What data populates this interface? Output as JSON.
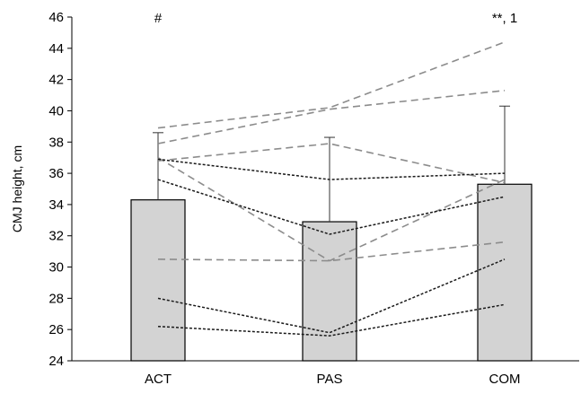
{
  "chart_data": {
    "type": "bar",
    "title": "",
    "xlabel": "",
    "ylabel": "CMJ height, cm",
    "ylim": [
      24,
      46
    ],
    "yticks": [
      24,
      26,
      28,
      30,
      32,
      34,
      36,
      38,
      40,
      42,
      44,
      46
    ],
    "grid": false,
    "categories": [
      "ACT",
      "PAS",
      "COM"
    ],
    "bars": {
      "name": "",
      "values": [
        34.3,
        32.9,
        35.3
      ],
      "error_upper": [
        38.6,
        38.3,
        40.3
      ],
      "color": "#d3d3d3",
      "edge_color": "#000000"
    },
    "annotations": [
      "#",
      "",
      "**, 1"
    ],
    "individual_lines": [
      {
        "style": "gray-dashed",
        "color": "#8c8c8c",
        "values": [
          38.9,
          40.2,
          44.4
        ]
      },
      {
        "style": "gray-dashed",
        "color": "#8c8c8c",
        "values": [
          37.9,
          40.1,
          41.3
        ]
      },
      {
        "style": "gray-dashed",
        "color": "#8c8c8c",
        "values": [
          36.8,
          37.9,
          35.4
        ]
      },
      {
        "style": "gray-dashed",
        "color": "#8c8c8c",
        "values": [
          37.0,
          30.4,
          35.6
        ]
      },
      {
        "style": "gray-dashed",
        "color": "#8c8c8c",
        "values": [
          30.5,
          30.4,
          31.6
        ]
      },
      {
        "style": "black-dotted",
        "color": "#1a1a1a",
        "values": [
          36.9,
          35.6,
          36.0
        ]
      },
      {
        "style": "black-dotted",
        "color": "#1a1a1a",
        "values": [
          35.6,
          32.1,
          34.5
        ]
      },
      {
        "style": "black-dotted",
        "color": "#1a1a1a",
        "values": [
          28.0,
          25.8,
          30.5
        ]
      },
      {
        "style": "black-dotted",
        "color": "#1a1a1a",
        "values": [
          26.2,
          25.6,
          27.6
        ]
      }
    ]
  }
}
